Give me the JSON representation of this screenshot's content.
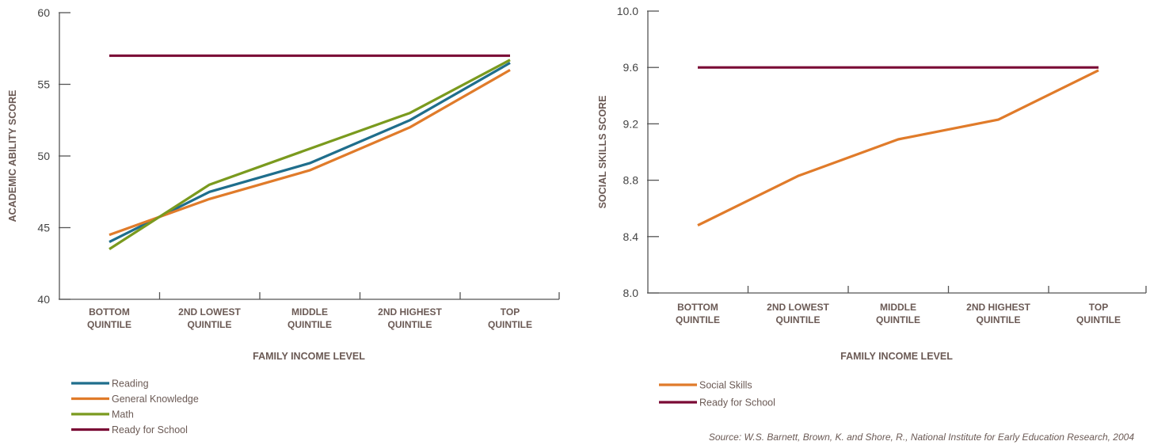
{
  "chart_data": [
    {
      "type": "line",
      "categories": [
        [
          "BOTTOM",
          "QUINTILE"
        ],
        [
          "2ND LOWEST",
          "QUINTILE"
        ],
        [
          "MIDDLE",
          "QUINTILE"
        ],
        [
          "2ND HIGHEST",
          "QUINTILE"
        ],
        [
          "TOP",
          "QUINTILE"
        ]
      ],
      "xlabel": "FAMILY INCOME LEVEL",
      "ylabel": "ACADEMIC ABILITY SCORE",
      "ylim": [
        40,
        60
      ],
      "yticks": [
        "40",
        "45",
        "50",
        "55",
        "60"
      ],
      "grid": false,
      "legend_position": "bottom-left",
      "series": [
        {
          "name": "Reading",
          "color": "#1f6e8c",
          "values": [
            44.0,
            47.5,
            49.5,
            52.5,
            56.5
          ]
        },
        {
          "name": "General Knowledge",
          "color": "#e07b2a",
          "values": [
            44.5,
            47.0,
            49.0,
            52.0,
            56.0
          ]
        },
        {
          "name": "Math",
          "color": "#7a9a1e",
          "values": [
            43.5,
            48.0,
            50.5,
            53.0,
            56.7
          ]
        },
        {
          "name": "Ready for School",
          "color": "#7a0a35",
          "values": [
            57.0,
            57.0,
            57.0,
            57.0,
            57.0
          ]
        }
      ]
    },
    {
      "type": "line",
      "categories": [
        [
          "BOTTOM",
          "QUINTILE"
        ],
        [
          "2ND LOWEST",
          "QUINTILE"
        ],
        [
          "MIDDLE",
          "QUINTILE"
        ],
        [
          "2ND HIGHEST",
          "QUINTILE"
        ],
        [
          "TOP",
          "QUINTILE"
        ]
      ],
      "xlabel": "FAMILY INCOME LEVEL",
      "ylabel": "SOCIAL SKILLS SCORE",
      "ylim": [
        8.0,
        10.0
      ],
      "yticks": [
        "8.0",
        "8.4",
        "8.8",
        "9.2",
        "9.6",
        "10.0"
      ],
      "grid": false,
      "legend_position": "bottom-left",
      "series": [
        {
          "name": "Social Skills",
          "color": "#e07b2a",
          "values": [
            8.48,
            8.83,
            9.09,
            9.23,
            9.58
          ]
        },
        {
          "name": "Ready for School",
          "color": "#7a0a35",
          "values": [
            9.6,
            9.6,
            9.6,
            9.6,
            9.6
          ]
        }
      ]
    }
  ],
  "source": "Source: W.S. Barnett, Brown, K. and Shore, R., National Institute for Early Education Research, 2004"
}
